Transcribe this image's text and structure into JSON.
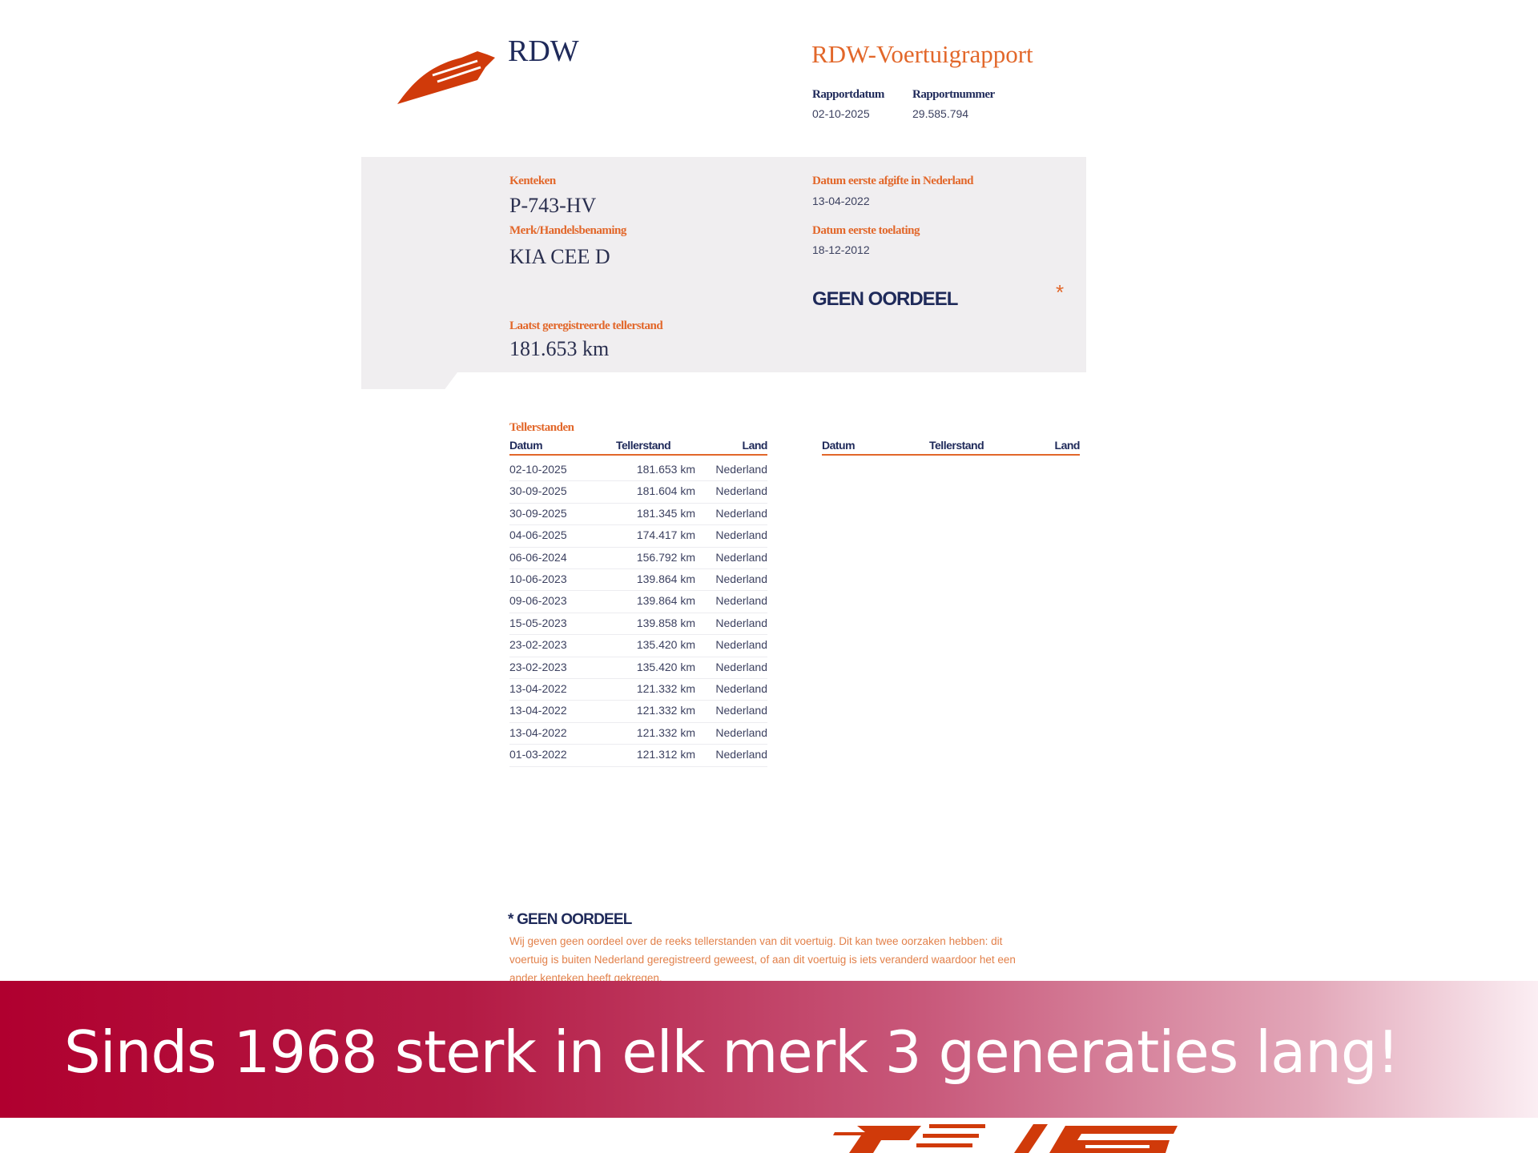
{
  "header": {
    "brand": "RDW",
    "title": "RDW-Voertuigrapport",
    "report_date_label": "Rapportdatum",
    "report_date": "02-10-2025",
    "report_number_label": "Rapportnummer",
    "report_number": "29.585.794"
  },
  "vehicle": {
    "plate_label": "Kenteken",
    "plate": "P-743-HV",
    "make_label": "Merk/Handelsbenaming",
    "make": "KIA CEE D",
    "first_nl_label": "Datum eerste afgifte in Nederland",
    "first_nl": "13-04-2022",
    "first_admission_label": "Datum eerste toelating",
    "first_admission": "18-12-2012",
    "verdict": "GEEN OORDEEL",
    "verdict_star": "*",
    "odometer_label": "Laatst geregistreerde tellerstand",
    "odometer": "181.653 km"
  },
  "readings": {
    "title": "Tellerstanden",
    "columns": [
      "Datum",
      "Tellerstand",
      "Land"
    ],
    "rows": [
      [
        "02-10-2025",
        "181.653 km",
        "Nederland"
      ],
      [
        "30-09-2025",
        "181.604 km",
        "Nederland"
      ],
      [
        "30-09-2025",
        "181.345 km",
        "Nederland"
      ],
      [
        "04-06-2025",
        "174.417 km",
        "Nederland"
      ],
      [
        "06-06-2024",
        "156.792 km",
        "Nederland"
      ],
      [
        "10-06-2023",
        "139.864 km",
        "Nederland"
      ],
      [
        "09-06-2023",
        "139.864 km",
        "Nederland"
      ],
      [
        "15-05-2023",
        "139.858 km",
        "Nederland"
      ],
      [
        "23-02-2023",
        "135.420 km",
        "Nederland"
      ],
      [
        "23-02-2023",
        "135.420 km",
        "Nederland"
      ],
      [
        "13-04-2022",
        "121.332 km",
        "Nederland"
      ],
      [
        "13-04-2022",
        "121.332 km",
        "Nederland"
      ],
      [
        "13-04-2022",
        "121.332 km",
        "Nederland"
      ],
      [
        "01-03-2022",
        "121.312 km",
        "Nederland"
      ]
    ]
  },
  "footnote": {
    "title": "* GEEN OORDEEL",
    "lines": [
      "Wij geven geen oordeel over de reeks tellerstanden van dit voertuig. Dit kan twee oorzaken hebben: dit",
      "voertuig is buiten Nederland geregistreerd geweest, of aan dit voertuig is iets veranderd waardoor het een",
      "ander kenteken heeft gekregen."
    ]
  },
  "banner": {
    "text": "Sinds 1968 sterk in elk merk 3 generaties lang!"
  },
  "colors": {
    "accent": "#e2672a",
    "navy": "#1f2a5a",
    "banner": "#b0002f",
    "logo": "#d03a0a"
  }
}
